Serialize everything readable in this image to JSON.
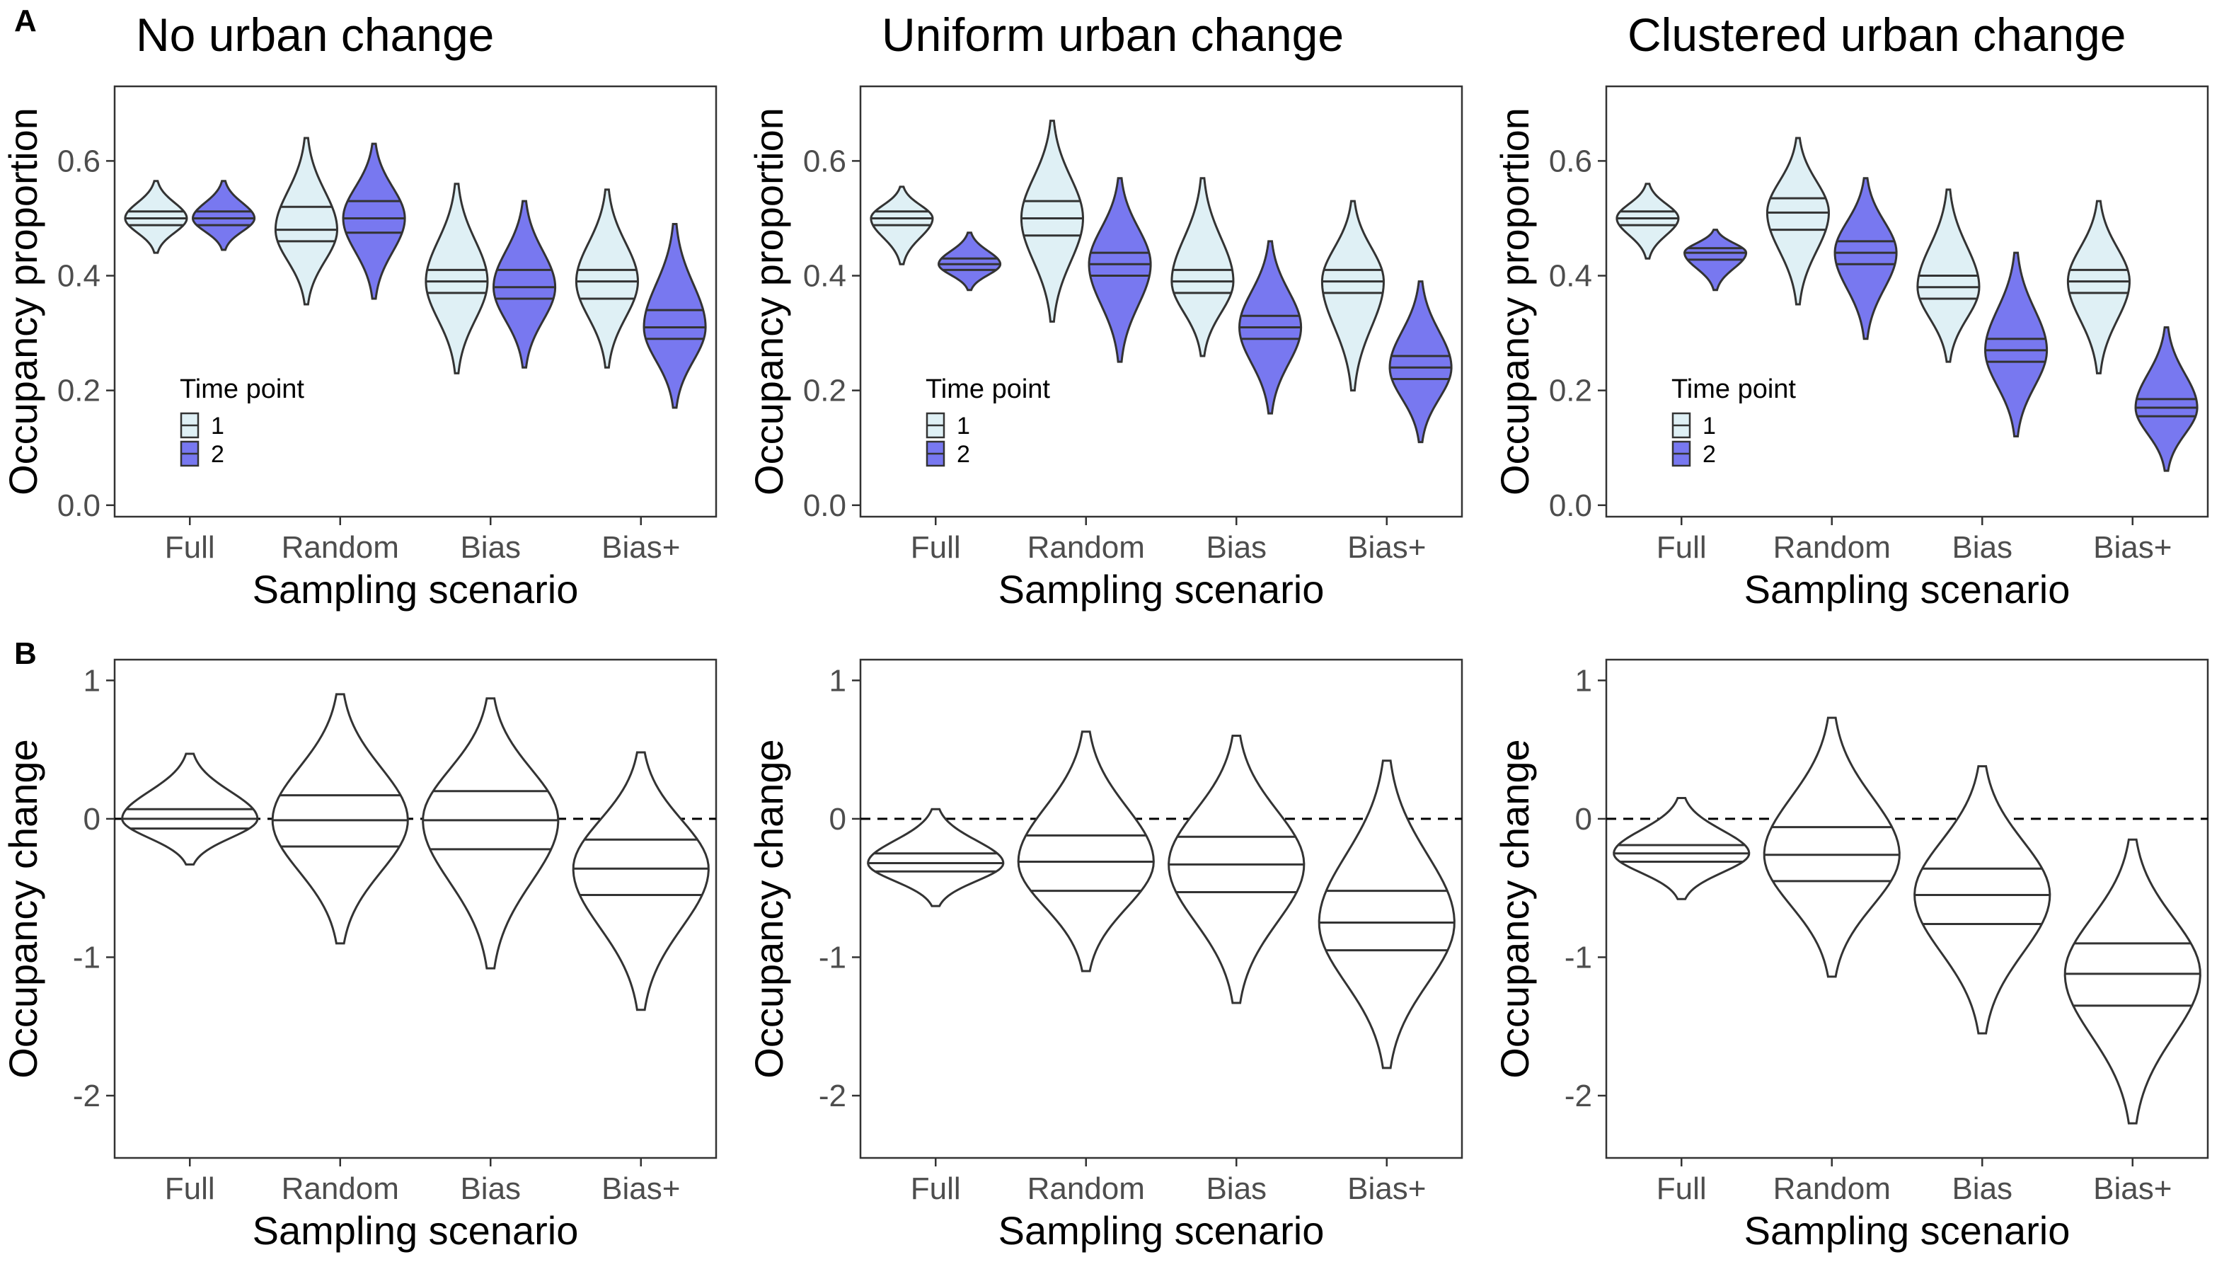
{
  "panel_labels": [
    "A",
    "B"
  ],
  "colors": {
    "time1": "#dff0f5",
    "time2": "#7878f0",
    "row_b_fill": "#ffffff",
    "outline": "#333333"
  },
  "legend": {
    "title": "Time point",
    "items": [
      "1",
      "2"
    ]
  },
  "chart_data": [
    {
      "type": "violin",
      "row": "A",
      "title": "No urban change",
      "xlabel": "Sampling scenario",
      "ylabel": "Occupancy proportion",
      "categories": [
        "Full",
        "Random",
        "Bias",
        "Bias+"
      ],
      "ylim": [
        -0.02,
        0.73
      ],
      "yticks": [
        0.0,
        0.2,
        0.4,
        0.6
      ],
      "grid": false,
      "legend_position": "bottom-left",
      "series": [
        {
          "name": "1",
          "values": [
            {
              "min": 0.44,
              "q1": 0.488,
              "median": 0.5,
              "q3": 0.512,
              "max": 0.565
            },
            {
              "min": 0.35,
              "q1": 0.46,
              "median": 0.48,
              "q3": 0.52,
              "max": 0.64
            },
            {
              "min": 0.23,
              "q1": 0.37,
              "median": 0.39,
              "q3": 0.41,
              "max": 0.56
            },
            {
              "min": 0.24,
              "q1": 0.36,
              "median": 0.39,
              "q3": 0.41,
              "max": 0.55
            }
          ]
        },
        {
          "name": "2",
          "values": [
            {
              "min": 0.445,
              "q1": 0.488,
              "median": 0.5,
              "q3": 0.512,
              "max": 0.565
            },
            {
              "min": 0.36,
              "q1": 0.475,
              "median": 0.5,
              "q3": 0.53,
              "max": 0.63
            },
            {
              "min": 0.24,
              "q1": 0.36,
              "median": 0.38,
              "q3": 0.41,
              "max": 0.53
            },
            {
              "min": 0.17,
              "q1": 0.29,
              "median": 0.31,
              "q3": 0.34,
              "max": 0.49
            }
          ]
        }
      ]
    },
    {
      "type": "violin",
      "row": "A",
      "title": "Uniform urban change",
      "xlabel": "Sampling scenario",
      "ylabel": "Occupancy proportion",
      "categories": [
        "Full",
        "Random",
        "Bias",
        "Bias+"
      ],
      "ylim": [
        -0.02,
        0.73
      ],
      "yticks": [
        0.0,
        0.2,
        0.4,
        0.6
      ],
      "grid": false,
      "legend_position": "bottom-left",
      "series": [
        {
          "name": "1",
          "values": [
            {
              "min": 0.42,
              "q1": 0.488,
              "median": 0.5,
              "q3": 0.512,
              "max": 0.555
            },
            {
              "min": 0.32,
              "q1": 0.47,
              "median": 0.5,
              "q3": 0.53,
              "max": 0.67
            },
            {
              "min": 0.26,
              "q1": 0.37,
              "median": 0.39,
              "q3": 0.41,
              "max": 0.57
            },
            {
              "min": 0.2,
              "q1": 0.37,
              "median": 0.39,
              "q3": 0.41,
              "max": 0.53
            }
          ]
        },
        {
          "name": "2",
          "values": [
            {
              "min": 0.375,
              "q1": 0.41,
              "median": 0.42,
              "q3": 0.43,
              "max": 0.475
            },
            {
              "min": 0.25,
              "q1": 0.4,
              "median": 0.42,
              "q3": 0.44,
              "max": 0.57
            },
            {
              "min": 0.16,
              "q1": 0.29,
              "median": 0.31,
              "q3": 0.33,
              "max": 0.46
            },
            {
              "min": 0.11,
              "q1": 0.22,
              "median": 0.24,
              "q3": 0.26,
              "max": 0.39
            }
          ]
        }
      ]
    },
    {
      "type": "violin",
      "row": "A",
      "title": "Clustered urban change",
      "xlabel": "Sampling scenario",
      "ylabel": "Occupancy proportion",
      "categories": [
        "Full",
        "Random",
        "Bias",
        "Bias+"
      ],
      "ylim": [
        -0.02,
        0.73
      ],
      "yticks": [
        0.0,
        0.2,
        0.4,
        0.6
      ],
      "grid": false,
      "legend_position": "bottom-left",
      "series": [
        {
          "name": "1",
          "values": [
            {
              "min": 0.43,
              "q1": 0.488,
              "median": 0.5,
              "q3": 0.512,
              "max": 0.56
            },
            {
              "min": 0.35,
              "q1": 0.48,
              "median": 0.51,
              "q3": 0.535,
              "max": 0.64
            },
            {
              "min": 0.25,
              "q1": 0.36,
              "median": 0.38,
              "q3": 0.4,
              "max": 0.55
            },
            {
              "min": 0.23,
              "q1": 0.37,
              "median": 0.39,
              "q3": 0.41,
              "max": 0.53
            }
          ]
        },
        {
          "name": "2",
          "values": [
            {
              "min": 0.375,
              "q1": 0.428,
              "median": 0.44,
              "q3": 0.448,
              "max": 0.48
            },
            {
              "min": 0.29,
              "q1": 0.42,
              "median": 0.44,
              "q3": 0.46,
              "max": 0.57
            },
            {
              "min": 0.12,
              "q1": 0.25,
              "median": 0.27,
              "q3": 0.29,
              "max": 0.44
            },
            {
              "min": 0.06,
              "q1": 0.155,
              "median": 0.17,
              "q3": 0.185,
              "max": 0.31
            }
          ]
        }
      ]
    },
    {
      "type": "violin",
      "row": "B",
      "title": "",
      "xlabel": "Sampling scenario",
      "ylabel": "Occupancy change",
      "categories": [
        "Full",
        "Random",
        "Bias",
        "Bias+"
      ],
      "ylim": [
        -2.45,
        1.15
      ],
      "yticks": [
        -2,
        -1,
        0,
        1
      ],
      "grid": false,
      "reference_line": 0,
      "series": [
        {
          "name": "",
          "values": [
            {
              "min": -0.33,
              "q1": -0.07,
              "median": 0.0,
              "q3": 0.07,
              "max": 0.47
            },
            {
              "min": -0.9,
              "q1": -0.2,
              "median": -0.01,
              "q3": 0.17,
              "max": 0.9
            },
            {
              "min": -1.08,
              "q1": -0.22,
              "median": -0.01,
              "q3": 0.2,
              "max": 0.87
            },
            {
              "min": -1.38,
              "q1": -0.55,
              "median": -0.36,
              "q3": -0.15,
              "max": 0.48
            }
          ]
        }
      ]
    },
    {
      "type": "violin",
      "row": "B",
      "title": "",
      "xlabel": "Sampling scenario",
      "ylabel": "Occupancy change",
      "categories": [
        "Full",
        "Random",
        "Bias",
        "Bias+"
      ],
      "ylim": [
        -2.45,
        1.15
      ],
      "yticks": [
        -2,
        -1,
        0,
        1
      ],
      "grid": false,
      "reference_line": 0,
      "series": [
        {
          "name": "",
          "values": [
            {
              "min": -0.63,
              "q1": -0.38,
              "median": -0.32,
              "q3": -0.25,
              "max": 0.07
            },
            {
              "min": -1.1,
              "q1": -0.52,
              "median": -0.31,
              "q3": -0.12,
              "max": 0.63
            },
            {
              "min": -1.33,
              "q1": -0.53,
              "median": -0.33,
              "q3": -0.13,
              "max": 0.6
            },
            {
              "min": -1.8,
              "q1": -0.95,
              "median": -0.75,
              "q3": -0.52,
              "max": 0.42
            }
          ]
        }
      ]
    },
    {
      "type": "violin",
      "row": "B",
      "title": "",
      "xlabel": "Sampling scenario",
      "ylabel": "Occupancy change",
      "categories": [
        "Full",
        "Random",
        "Bias",
        "Bias+"
      ],
      "ylim": [
        -2.45,
        1.15
      ],
      "yticks": [
        -2,
        -1,
        0,
        1
      ],
      "grid": false,
      "reference_line": 0,
      "series": [
        {
          "name": "",
          "values": [
            {
              "min": -0.58,
              "q1": -0.31,
              "median": -0.25,
              "q3": -0.19,
              "max": 0.15
            },
            {
              "min": -1.14,
              "q1": -0.45,
              "median": -0.26,
              "q3": -0.06,
              "max": 0.73
            },
            {
              "min": -1.55,
              "q1": -0.76,
              "median": -0.55,
              "q3": -0.36,
              "max": 0.38
            },
            {
              "min": -2.2,
              "q1": -1.35,
              "median": -1.12,
              "q3": -0.9,
              "max": -0.15
            }
          ]
        }
      ]
    }
  ]
}
